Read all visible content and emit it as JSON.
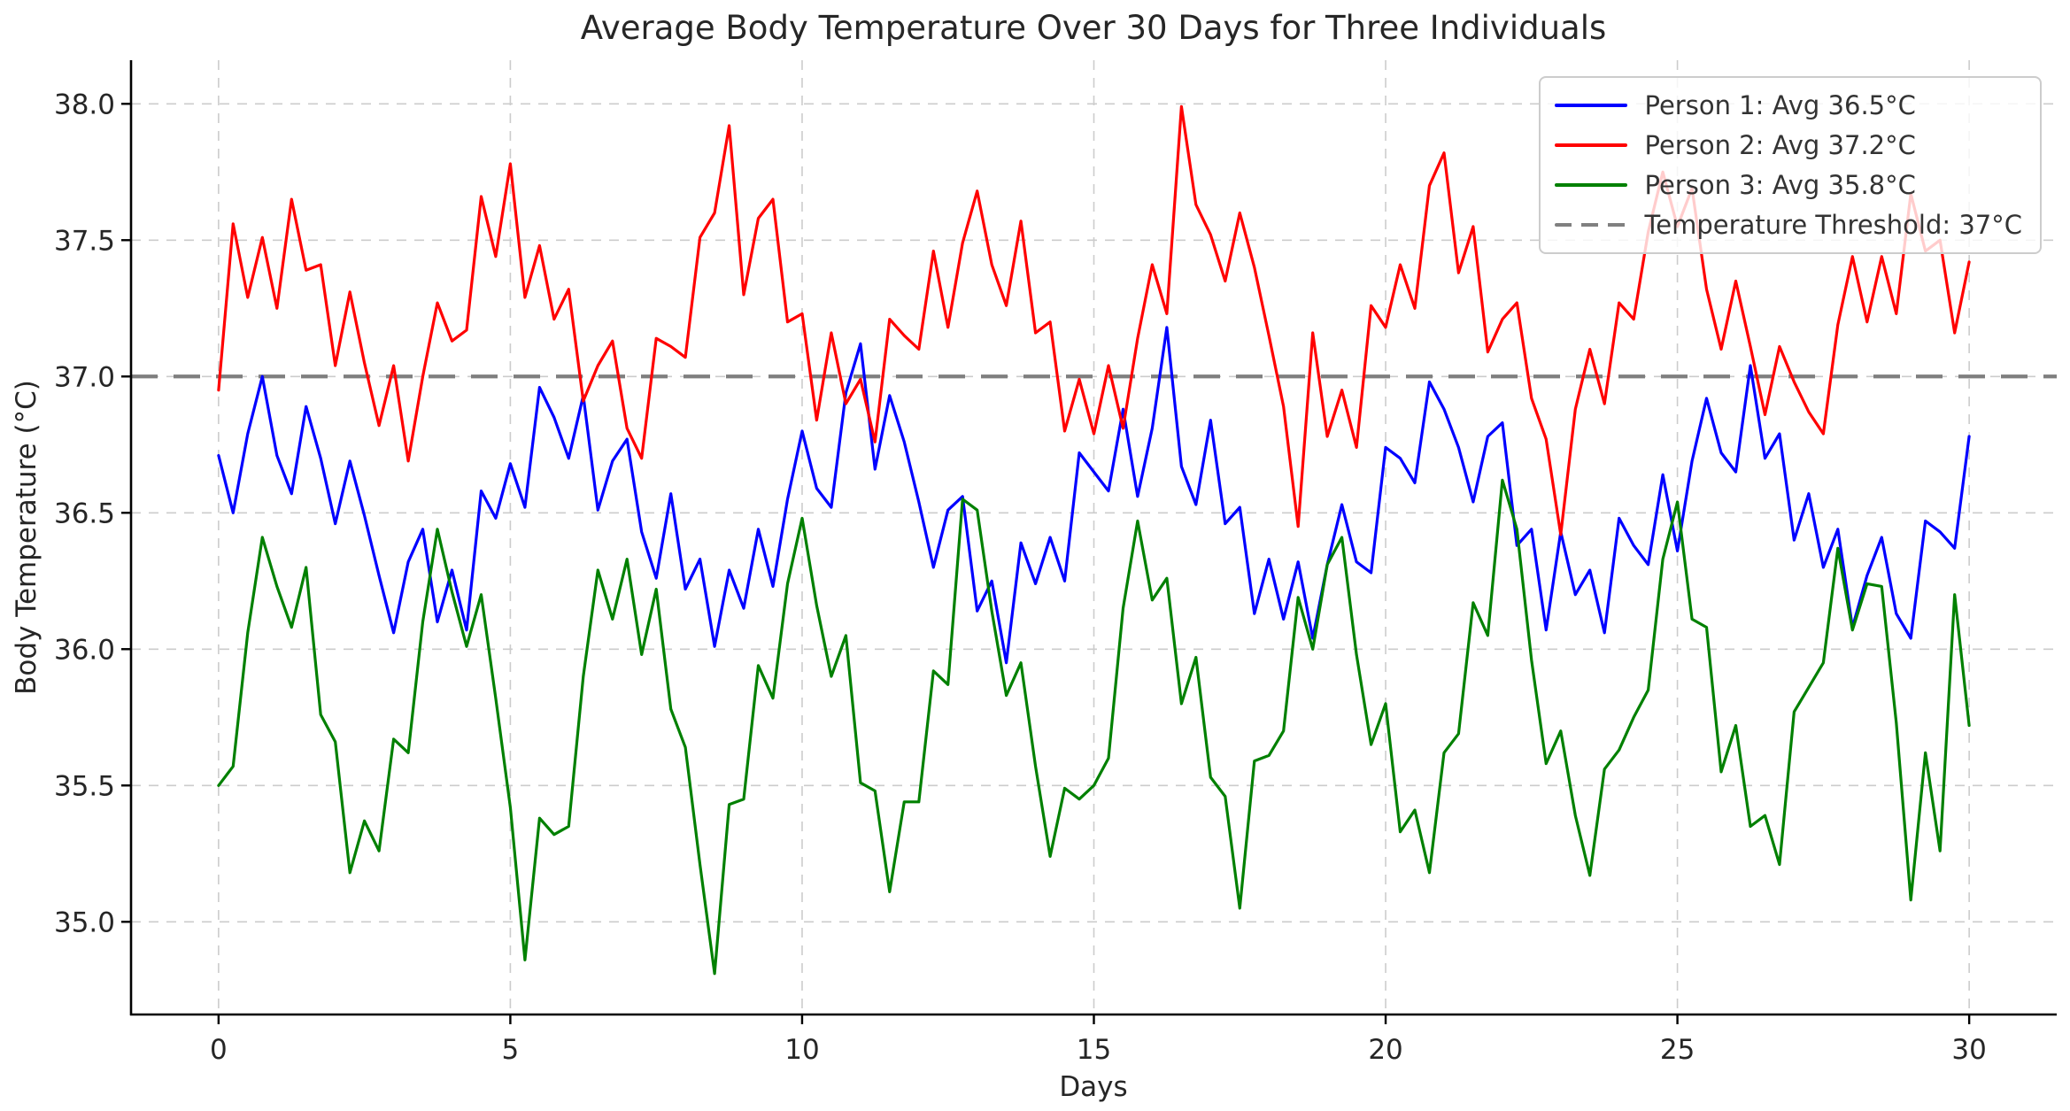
{
  "title": "Average Body Temperature Over 30 Days for Three Individuals",
  "x_axis": {
    "label": "Days",
    "tick_labels": [
      "0",
      "5",
      "10",
      "15",
      "20",
      "25",
      "30"
    ]
  },
  "y_axis": {
    "label": "Body Temperature (°C)",
    "tick_labels": [
      "35.0",
      "35.5",
      "36.0",
      "36.5",
      "37.0",
      "37.5",
      "38.0"
    ]
  },
  "legend": {
    "entries": [
      {
        "label": "Person 1: Avg 36.5°C",
        "color": "#0000ff",
        "line_style": "solid"
      },
      {
        "label": "Person 2: Avg 37.2°C",
        "color": "#ff0000",
        "line_style": "solid"
      },
      {
        "label": "Person 3: Avg 35.8°C",
        "color": "#008000",
        "line_style": "solid"
      },
      {
        "label": "Temperature Threshold: 37°C",
        "color": "#808080",
        "line_style": "dashed"
      }
    ]
  },
  "colors": {
    "grid": "#cccccc",
    "spine": "#000000",
    "text": "#262626",
    "threshold": "#7f7f7f"
  },
  "chart_data": {
    "type": "line",
    "title": "Average Body Temperature Over 30 Days for Three Individuals",
    "xlabel": "Days",
    "ylabel": "Body Temperature (°C)",
    "xlim": [
      -1.5,
      31.5
    ],
    "ylim": [
      34.66,
      38.16
    ],
    "x_ticks": [
      0,
      5,
      10,
      15,
      20,
      25,
      30
    ],
    "y_ticks": [
      35.0,
      35.5,
      36.0,
      36.5,
      37.0,
      37.5,
      38.0
    ],
    "grid": true,
    "legend_position": "upper right",
    "x_start": 0,
    "x_step": 0.25,
    "threshold": {
      "label": "Temperature Threshold: 37°C",
      "value": 37,
      "color": "#7f7f7f",
      "style": "dashed"
    },
    "series": [
      {
        "name": "Person 1: Avg 36.5°C",
        "color": "#0000ff",
        "average": 36.5,
        "values": [
          36.71,
          36.5,
          36.79,
          37.0,
          36.71,
          36.57,
          36.89,
          36.7,
          36.46,
          36.69,
          36.49,
          36.27,
          36.06,
          36.32,
          36.44,
          36.1,
          36.29,
          36.07,
          36.58,
          36.48,
          36.68,
          36.52,
          36.96,
          36.85,
          36.7,
          36.93,
          36.51,
          36.69,
          36.77,
          36.43,
          36.26,
          36.57,
          36.22,
          36.33,
          36.01,
          36.29,
          36.15,
          36.44,
          36.23,
          36.55,
          36.8,
          36.59,
          36.52,
          36.94,
          37.12,
          36.66,
          36.93,
          36.76,
          36.54,
          36.3,
          36.51,
          36.56,
          36.14,
          36.25,
          35.95,
          36.39,
          36.24,
          36.41,
          36.25,
          36.72,
          36.65,
          36.58,
          36.88,
          36.56,
          36.81,
          37.18,
          36.67,
          36.53,
          36.84,
          36.46,
          36.52,
          36.13,
          36.33,
          36.11,
          36.32,
          36.04,
          36.31,
          36.53,
          36.32,
          36.28,
          36.74,
          36.7,
          36.61,
          36.98,
          36.88,
          36.74,
          36.54,
          36.78,
          36.83,
          36.38,
          36.44,
          36.07,
          36.43,
          36.2,
          36.29,
          36.06,
          36.48,
          36.38,
          36.31,
          36.64,
          36.36,
          36.69,
          36.92,
          36.72,
          36.65,
          37.04,
          36.7,
          36.79,
          36.4,
          36.57,
          36.3,
          36.44,
          36.08,
          36.27,
          36.41,
          36.13,
          36.04,
          36.47,
          36.43,
          36.37,
          36.78
        ]
      },
      {
        "name": "Person 2: Avg 37.2°C",
        "color": "#ff0000",
        "average": 37.2,
        "values": [
          36.95,
          37.56,
          37.29,
          37.51,
          37.25,
          37.65,
          37.39,
          37.41,
          37.04,
          37.31,
          37.05,
          36.82,
          37.04,
          36.69,
          37.0,
          37.27,
          37.13,
          37.17,
          37.66,
          37.44,
          37.78,
          37.29,
          37.48,
          37.21,
          37.32,
          36.91,
          37.04,
          37.13,
          36.81,
          36.7,
          37.14,
          37.11,
          37.07,
          37.51,
          37.6,
          37.92,
          37.3,
          37.58,
          37.65,
          37.2,
          37.23,
          36.84,
          37.16,
          36.9,
          36.99,
          36.76,
          37.21,
          37.15,
          37.1,
          37.46,
          37.18,
          37.49,
          37.68,
          37.41,
          37.26,
          37.57,
          37.16,
          37.2,
          36.8,
          36.99,
          36.79,
          37.04,
          36.81,
          37.14,
          37.41,
          37.23,
          37.99,
          37.63,
          37.52,
          37.35,
          37.6,
          37.4,
          37.15,
          36.89,
          36.45,
          37.16,
          36.78,
          36.95,
          36.74,
          37.26,
          37.18,
          37.41,
          37.25,
          37.7,
          37.82,
          37.38,
          37.55,
          37.09,
          37.21,
          37.27,
          36.92,
          36.77,
          36.42,
          36.88,
          37.1,
          36.9,
          37.27,
          37.21,
          37.53,
          37.75,
          37.55,
          37.69,
          37.32,
          37.1,
          37.35,
          37.11,
          36.86,
          37.11,
          36.98,
          36.87,
          36.79,
          37.19,
          37.44,
          37.2,
          37.44,
          37.23,
          37.67,
          37.46,
          37.5,
          37.16,
          37.42
        ]
      },
      {
        "name": "Person 3: Avg 35.8°C",
        "color": "#008000",
        "average": 35.8,
        "values": [
          35.5,
          35.57,
          36.06,
          36.41,
          36.23,
          36.08,
          36.3,
          35.76,
          35.66,
          35.18,
          35.37,
          35.26,
          35.67,
          35.62,
          36.1,
          36.44,
          36.21,
          36.01,
          36.2,
          35.82,
          35.42,
          34.86,
          35.38,
          35.32,
          35.35,
          35.9,
          36.29,
          36.11,
          36.33,
          35.98,
          36.22,
          35.78,
          35.64,
          35.21,
          34.81,
          35.43,
          35.45,
          35.94,
          35.82,
          36.24,
          36.48,
          36.16,
          35.9,
          36.05,
          35.51,
          35.48,
          35.11,
          35.44,
          35.44,
          35.92,
          35.87,
          36.55,
          36.51,
          36.14,
          35.83,
          35.95,
          35.57,
          35.24,
          35.49,
          35.45,
          35.5,
          35.6,
          36.15,
          36.47,
          36.18,
          36.26,
          35.8,
          35.97,
          35.53,
          35.46,
          35.05,
          35.59,
          35.61,
          35.7,
          36.19,
          36.0,
          36.31,
          36.41,
          35.98,
          35.65,
          35.8,
          35.33,
          35.41,
          35.18,
          35.62,
          35.69,
          36.17,
          36.05,
          36.62,
          36.44,
          35.96,
          35.58,
          35.7,
          35.39,
          35.17,
          35.56,
          35.63,
          35.75,
          35.85,
          36.33,
          36.54,
          36.11,
          36.08,
          35.55,
          35.72,
          35.35,
          35.39,
          35.21,
          35.77,
          35.86,
          35.95,
          36.37,
          36.07,
          36.24,
          36.23,
          35.73,
          35.08,
          35.62,
          35.26,
          36.2,
          35.72
        ]
      }
    ]
  }
}
